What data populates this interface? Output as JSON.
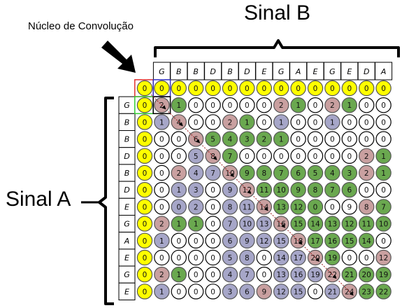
{
  "title_b": "Sinal B",
  "title_a": "Sinal A",
  "kernel_label": "Núcleo de Convolução",
  "signal_b": [
    "G",
    "B",
    "B",
    "D",
    "B",
    "D",
    "E",
    "G",
    "A",
    "E",
    "G",
    "E",
    "D",
    "A"
  ],
  "signal_a": [
    "G",
    "B",
    "B",
    "D",
    "B",
    "D",
    "E",
    "G",
    "A",
    "E",
    "G",
    "E"
  ],
  "colors": {
    "yellow": "#ffff00",
    "green": "#6aa84f",
    "blue_grey": "#a6a6c8",
    "red": "#c9a0a0",
    "white": "#ffffff",
    "kernel_outline_red": "#e03030",
    "kernel_outline_green": "#33cc33",
    "kernel_outline_blue": "#3030c0"
  },
  "matrix": [
    [
      "0",
      "0",
      "0",
      "0",
      "0",
      "0",
      "0",
      "0",
      "0",
      "0",
      "0",
      "0",
      "0",
      "0",
      "0"
    ],
    [
      "0",
      "2",
      "1",
      "0",
      "0",
      "0",
      "0",
      "0",
      "2",
      "1",
      "0",
      "2",
      "1",
      "0",
      "0"
    ],
    [
      "0",
      "1",
      "4",
      "0",
      "0",
      "2",
      "1",
      "0",
      "1",
      "0",
      "0",
      "1",
      "0",
      "0",
      "0"
    ],
    [
      "0",
      "0",
      "0",
      "6",
      "5",
      "4",
      "3",
      "2",
      "1",
      "0",
      "0",
      "0",
      "0",
      "0",
      "0"
    ],
    [
      "0",
      "0",
      "0",
      "5",
      "8",
      "7",
      "0",
      "0",
      "0",
      "0",
      "0",
      "0",
      "0",
      "2",
      "1"
    ],
    [
      "0",
      "0",
      "2",
      "4",
      "7",
      "10",
      "9",
      "8",
      "7",
      "6",
      "5",
      "4",
      "3",
      "2",
      "1"
    ],
    [
      "0",
      "0",
      "1",
      "3",
      "0",
      "9",
      "12",
      "11",
      "10",
      "9",
      "8",
      "7",
      "6",
      "0",
      "0"
    ],
    [
      "0",
      "0",
      "0",
      "2",
      "0",
      "8",
      "11",
      "14",
      "13",
      "12",
      "0",
      "0",
      "9",
      "8",
      "7"
    ],
    [
      "0",
      "2",
      "1",
      "1",
      "0",
      "7",
      "10",
      "13",
      "16",
      "15",
      "14",
      "13",
      "12",
      "11",
      "10"
    ],
    [
      "0",
      "1",
      "0",
      "0",
      "0",
      "6",
      "9",
      "12",
      "15",
      "18",
      "17",
      "16",
      "15",
      "14",
      "0"
    ],
    [
      "0",
      "0",
      "0",
      "0",
      "0",
      "5",
      "8",
      "0",
      "14",
      "17",
      "20",
      "19",
      "0",
      "0",
      "12"
    ],
    [
      "0",
      "2",
      "1",
      "0",
      "0",
      "4",
      "7",
      "0",
      "13",
      "16",
      "19",
      "22",
      "21",
      "20",
      "19"
    ],
    [
      "0",
      "1",
      "0",
      "0",
      "0",
      "3",
      "6",
      "9",
      "12",
      "15",
      "0",
      "21",
      "24",
      "23",
      "22"
    ]
  ],
  "fills": [
    "yyyyyyyyyyyyyyy",
    "yrgwwwwwrgwrgww",
    "ybrwwrgwbwwbwww",
    "ywwrgggggwwwwww",
    "ywwbrgwwwwwwwrg",
    "ywrbbrgggggggrg",
    "ywbbwbrggggggww",
    "ywbbwbbrgggwwrg",
    "yrggwbbbrgggggg",
    "ybwwwbbbbrggggw",
    "ywwwwbbwbbrgwwr",
    "yrgwwbbwbbbrggg",
    "ybwwwbbrbbwbrgg"
  ],
  "path_cells": [
    [
      1,
      1
    ],
    [
      2,
      2
    ],
    [
      3,
      3
    ],
    [
      4,
      4
    ],
    [
      5,
      5
    ],
    [
      6,
      6
    ],
    [
      7,
      7
    ],
    [
      8,
      8
    ],
    [
      9,
      9
    ],
    [
      10,
      10
    ],
    [
      11,
      11
    ],
    [
      12,
      12
    ]
  ]
}
